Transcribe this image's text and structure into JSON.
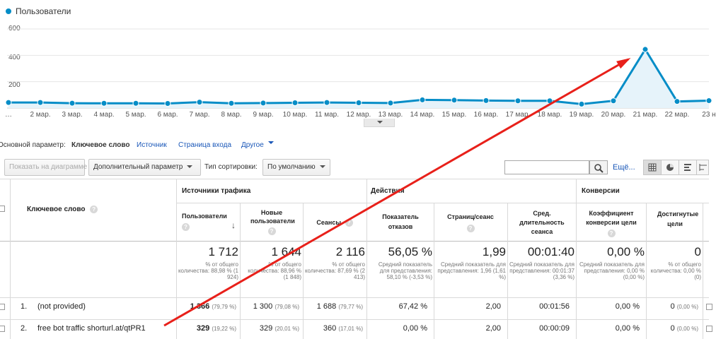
{
  "chart_data": {
    "type": "line",
    "legend": "Пользователи",
    "color": "#058dc7",
    "yticks": [
      "600",
      "400",
      "200"
    ],
    "ylim": [
      0,
      600
    ],
    "x": [
      "…",
      "2 мар.",
      "3 мар.",
      "4 мар.",
      "5 мар.",
      "6 мар.",
      "7 мар.",
      "8 мар.",
      "9 мар.",
      "10 мар.",
      "11 мар.",
      "12 мар.",
      "13 мар.",
      "14 мар.",
      "15 мар.",
      "16 мар.",
      "17 мар.",
      "18 мар.",
      "19 мар.",
      "20 мар.",
      "21 мар.",
      "22 мар.",
      "23 н"
    ],
    "series": [
      {
        "name": "Пользователи",
        "values": [
          42,
          42,
          37,
          36,
          36,
          35,
          45,
          36,
          38,
          40,
          42,
          40,
          38,
          62,
          60,
          57,
          55,
          55,
          30,
          55,
          445,
          50,
          56
        ]
      }
    ]
  },
  "dimension": {
    "label": "Основной параметр:",
    "active": "Ключевое слово",
    "options": [
      "Источник",
      "Страница входа",
      "Другое"
    ]
  },
  "toolbar": {
    "plot_button": "Показать на диаграмме",
    "secondary_dim": "Дополнительный параметр",
    "sort_label": "Тип сортировки:",
    "sort_value": "По умолчанию",
    "search_value": "",
    "more": "Ещё..."
  },
  "table": {
    "key_header": "Ключевое слово",
    "groups": [
      "Источники трафика",
      "Действия",
      "Конверсии"
    ],
    "columns": [
      "Пользователи",
      "Новые пользователи",
      "Сеансы",
      "Показатель отказов",
      "Страниц/сеанс",
      "Сред. длительность сеанса",
      "Коэффициент конверсии цели",
      "Достигнутые цели"
    ],
    "totals": [
      {
        "value": "1 712",
        "sub": "% от общего количества: 88,98 % (1 924)"
      },
      {
        "value": "1 644",
        "sub": "% от общего количества: 88,96 % (1 848)"
      },
      {
        "value": "2 116",
        "sub": "% от общего количества: 87,69 % (2 413)"
      },
      {
        "value": "56,05 %",
        "sub": "Средний показатель для представления: 58,10 % (-3,53 %)"
      },
      {
        "value": "1,99",
        "sub": "Средний показатель для представления: 1,96 (1,61 %)"
      },
      {
        "value": "00:01:40",
        "sub": "Средний показатель для представления: 00:01:37 (3,36 %)"
      },
      {
        "value": "0,00 %",
        "sub": "Средний показатель для представления: 0,00 % (0,00 %)"
      },
      {
        "value": "0",
        "sub": "% от общего количества: 0,00 % (0)"
      }
    ],
    "rows": [
      {
        "num": "1.",
        "keyword": "(not provided)",
        "users": "1 366",
        "users_pct": "(79,79 %)",
        "new_users": "1 300",
        "new_users_pct": "(79,08 %)",
        "sessions": "1 688",
        "sessions_pct": "(79,77 %)",
        "bounce": "67,42 %",
        "pages": "2,00",
        "duration": "00:01:56",
        "conv": "0,00 %",
        "goals": "0",
        "goals_pct": "(0,00 %)"
      },
      {
        "num": "2.",
        "keyword": "free bot traffic shorturl.at/qtPR1",
        "users": "329",
        "users_pct": "(19,22 %)",
        "new_users": "329",
        "new_users_pct": "(20,01 %)",
        "sessions": "360",
        "sessions_pct": "(17,01 %)",
        "bounce": "0,00 %",
        "pages": "2,00",
        "duration": "00:00:09",
        "conv": "0,00 %",
        "goals": "0",
        "goals_pct": "(0,00 %)"
      }
    ]
  },
  "annotation": {
    "color": "#e8201a"
  }
}
